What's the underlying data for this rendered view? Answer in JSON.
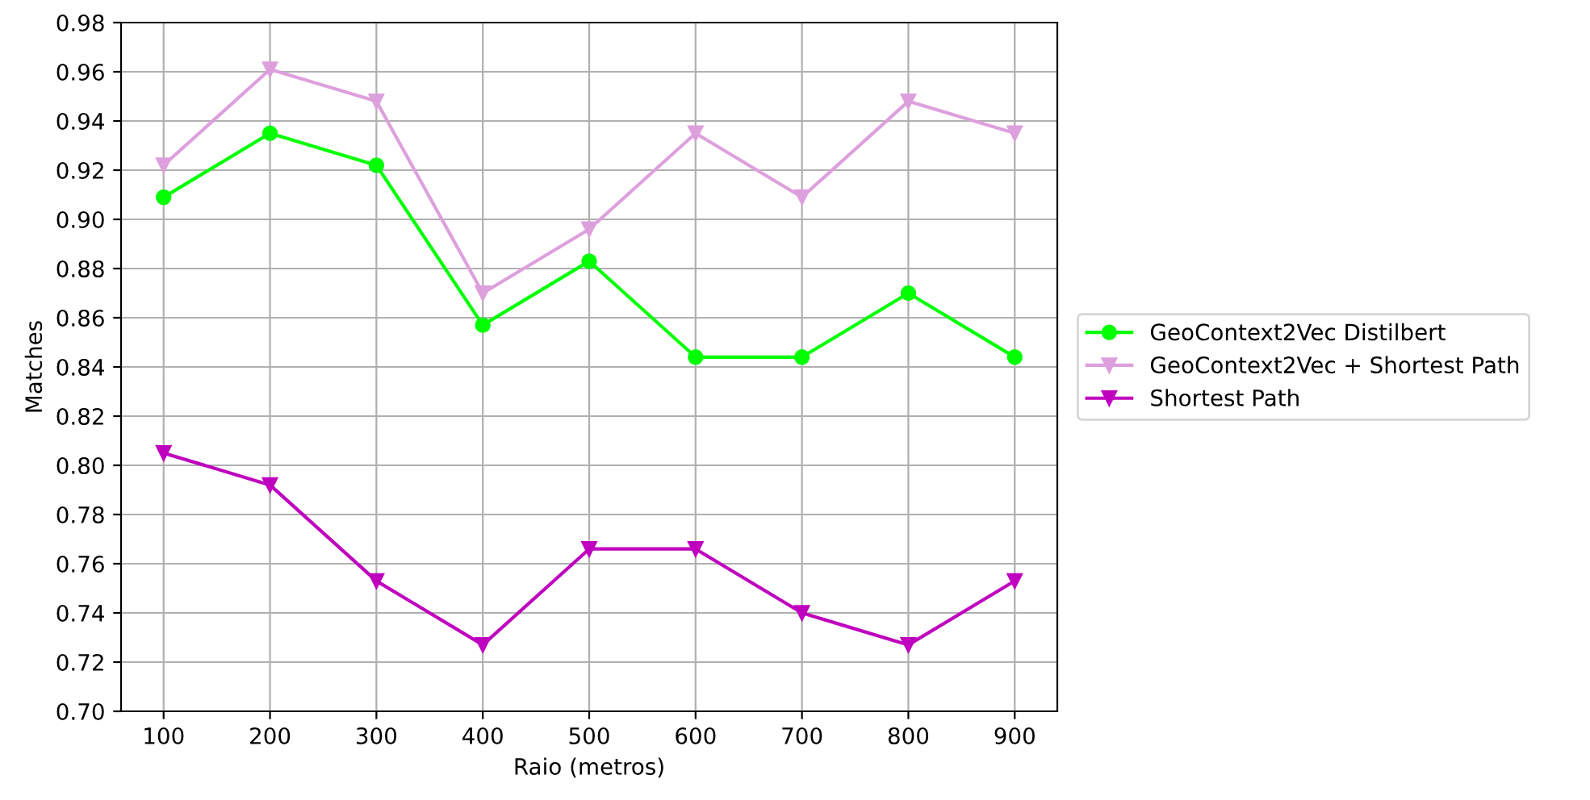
{
  "chart_data": {
    "type": "line",
    "xlabel": "Raio (metros)",
    "ylabel": "Matches",
    "categories": [
      "100",
      "200",
      "300",
      "400",
      "500",
      "600",
      "700",
      "800",
      "900"
    ],
    "series": [
      {
        "name": "GeoContext2Vec Distilbert",
        "color": "#00ff00",
        "marker": "circle",
        "values": [
          0.909,
          0.935,
          0.922,
          0.857,
          0.883,
          0.844,
          0.844,
          0.87,
          0.844
        ]
      },
      {
        "name": "GeoContext2Vec + Shortest Path",
        "color": "#dda0dd",
        "marker": "triangle",
        "values": [
          0.922,
          0.961,
          0.948,
          0.87,
          0.896,
          0.935,
          0.909,
          0.948,
          0.935
        ]
      },
      {
        "name": "Shortest Path",
        "color": "#bf00bf",
        "marker": "triangle",
        "values": [
          0.805,
          0.792,
          0.753,
          0.727,
          0.766,
          0.766,
          0.74,
          0.727,
          0.753
        ]
      }
    ],
    "ylim": [
      0.7,
      0.98
    ],
    "yticks": [
      {
        "value": 0.7,
        "label": "0.70"
      },
      {
        "value": 0.72,
        "label": "0.72"
      },
      {
        "value": 0.74,
        "label": "0.74"
      },
      {
        "value": 0.76,
        "label": "0.76"
      },
      {
        "value": 0.78,
        "label": "0.78"
      },
      {
        "value": 0.8,
        "label": "0.80"
      },
      {
        "value": 0.82,
        "label": "0.82"
      },
      {
        "value": 0.84,
        "label": "0.84"
      },
      {
        "value": 0.86,
        "label": "0.86"
      },
      {
        "value": 0.88,
        "label": "0.88"
      },
      {
        "value": 0.9,
        "label": "0.90"
      },
      {
        "value": 0.92,
        "label": "0.92"
      },
      {
        "value": 0.94,
        "label": "0.94"
      },
      {
        "value": 0.96,
        "label": "0.96"
      },
      {
        "value": 0.98,
        "label": "0.98"
      }
    ],
    "grid": true,
    "legend": "right",
    "line_style": "solid"
  }
}
